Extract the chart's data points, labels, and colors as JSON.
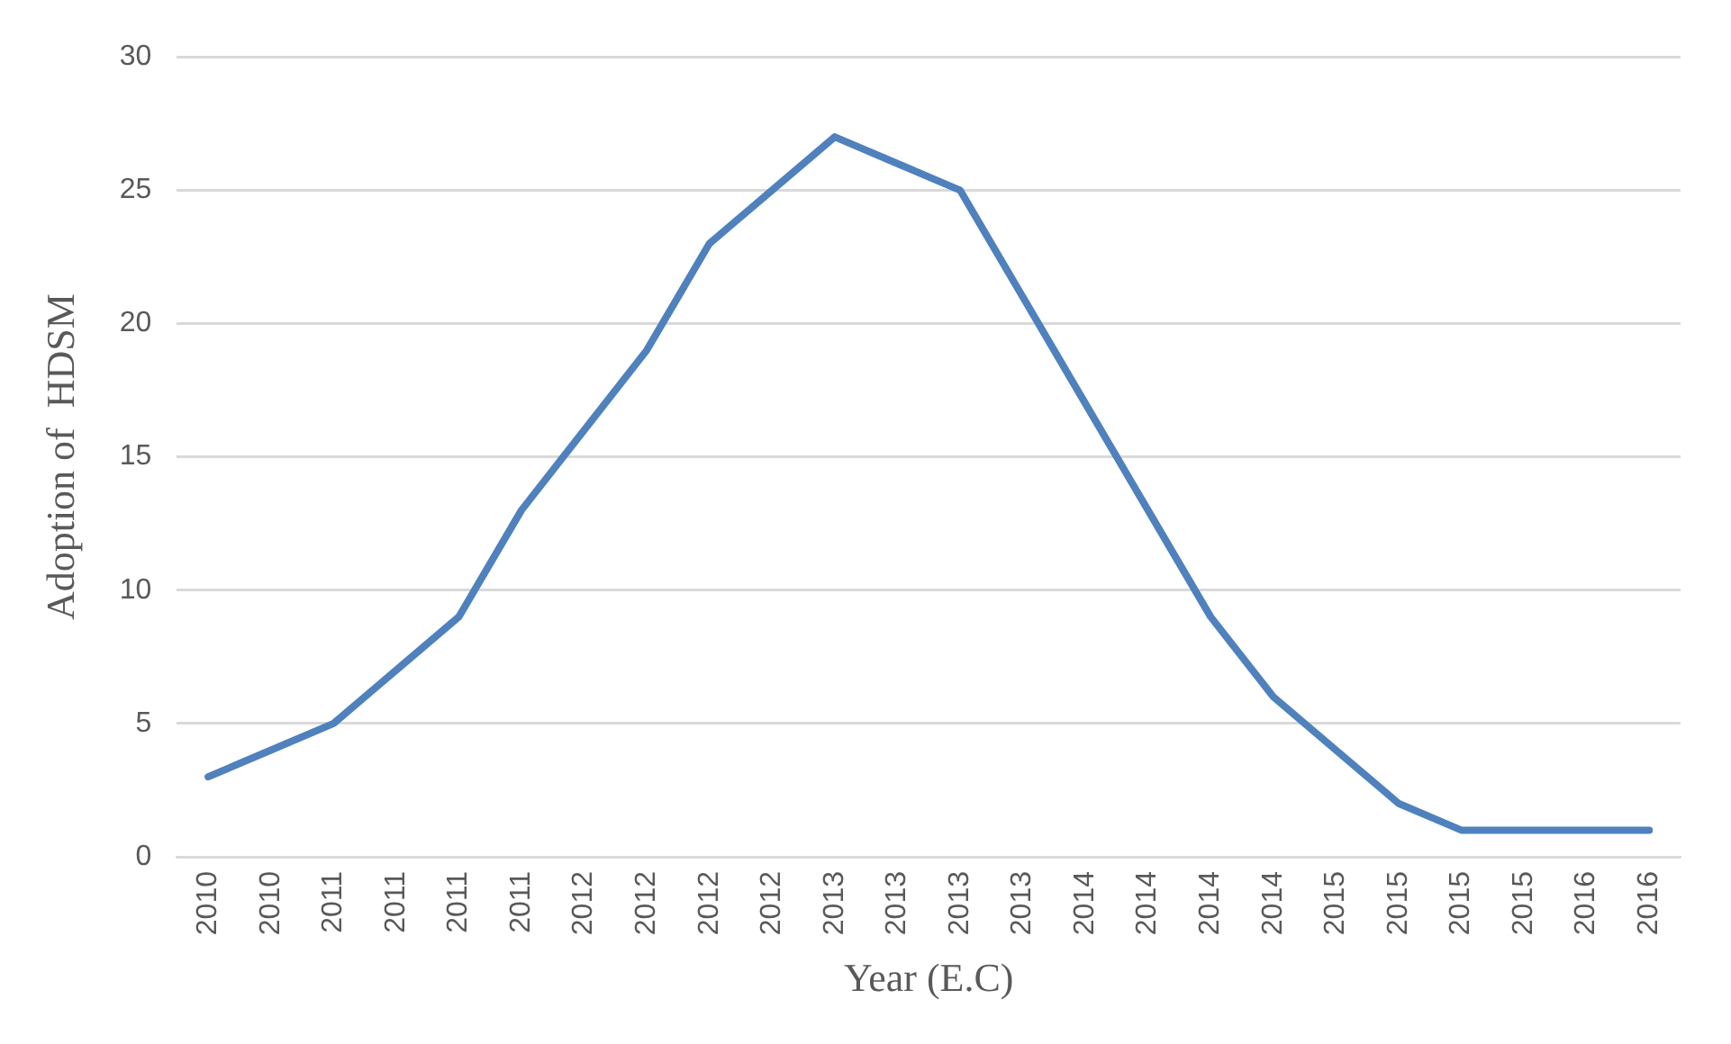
{
  "chart_data": {
    "type": "line",
    "xlabel": "Year (E.C)",
    "ylabel": "Adoption of  HDSM",
    "categories": [
      "2010",
      "2010",
      "2011",
      "2011",
      "2011",
      "2011",
      "2012",
      "2012",
      "2012",
      "2012",
      "2013",
      "2013",
      "2013",
      "2013",
      "2014",
      "2014",
      "2014",
      "2014",
      "2015",
      "2015",
      "2015",
      "2015",
      "2016",
      "2016"
    ],
    "series": [
      {
        "color": "#4f81bd",
        "values": [
          3,
          4,
          5,
          7,
          9,
          13,
          16,
          19,
          23,
          25,
          27,
          26,
          25,
          21,
          17,
          13,
          9,
          6,
          4,
          2,
          1,
          1,
          1,
          1
        ]
      }
    ],
    "ylim": [
      0,
      30
    ],
    "yticks": [
      0,
      5,
      10,
      15,
      20,
      25,
      30
    ],
    "grid": "y",
    "legend": false,
    "marker": "none",
    "line_style": "solid"
  }
}
